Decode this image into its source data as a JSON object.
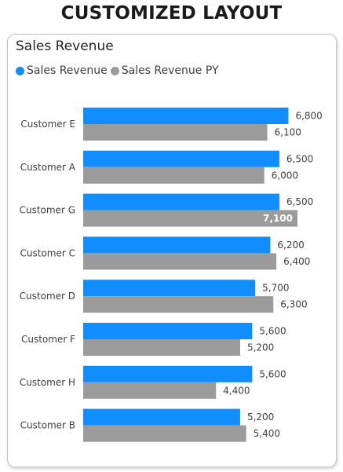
{
  "page": {
    "title": "CUSTOMIZED LAYOUT"
  },
  "colors": {
    "current": "#118DFF",
    "previous": "#9B9B9B"
  },
  "chart_data": {
    "type": "bar",
    "orientation": "horizontal",
    "title": "Sales Revenue",
    "legend_position": "top-left",
    "grid": false,
    "categories": [
      "Customer E",
      "Customer A",
      "Customer G",
      "Customer C",
      "Customer D",
      "Customer F",
      "Customer H",
      "Customer B"
    ],
    "series": [
      {
        "name": "Sales Revenue",
        "color": "#118DFF",
        "values": [
          6800,
          6500,
          6500,
          6200,
          5700,
          5600,
          5600,
          5200
        ],
        "labels": [
          "6,800",
          "6,500",
          "6,500",
          "6,200",
          "5,700",
          "5,600",
          "5,600",
          "5,200"
        ]
      },
      {
        "name": "Sales Revenue PY",
        "color": "#9B9B9B",
        "values": [
          6100,
          6000,
          7100,
          6400,
          6300,
          5200,
          4400,
          5400
        ],
        "labels": [
          "6,100",
          "6,000",
          "7,100",
          "6,400",
          "6,300",
          "5,200",
          "4,400",
          "5,400"
        ]
      }
    ],
    "xlim": [
      0,
      7100
    ]
  }
}
